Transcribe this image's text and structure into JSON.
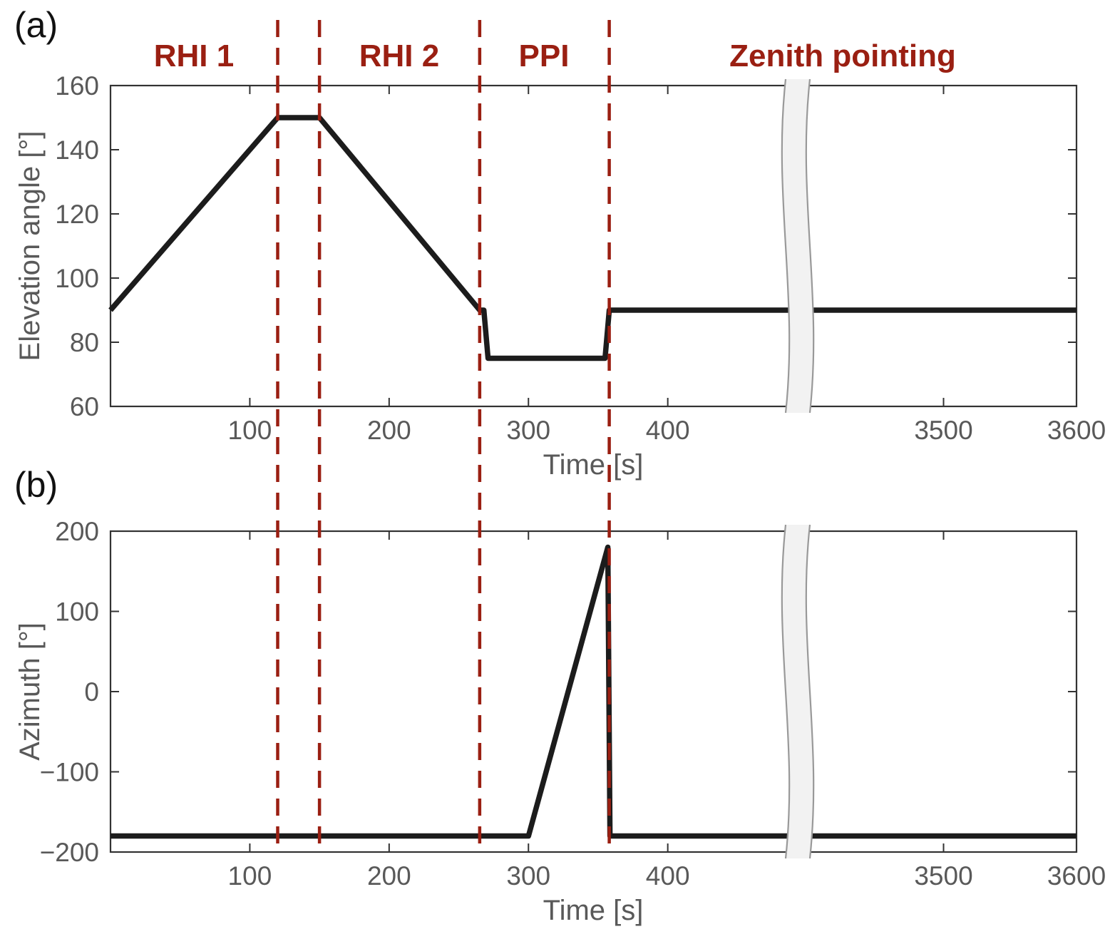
{
  "figure": {
    "background": "#ffffff",
    "panels": [
      {
        "letter": "(a)",
        "ylabel": "Elevation angle [°]",
        "xlabel": "Time [s]"
      },
      {
        "letter": "(b)",
        "ylabel": "Azimuth [°]",
        "xlabel": "Time [s]"
      }
    ],
    "phase_labels": [
      {
        "text": "RHI 1"
      },
      {
        "text": "RHI 2"
      },
      {
        "text": "PPI"
      },
      {
        "text": "Zenith pointing"
      }
    ]
  },
  "colors": {
    "dark_red": "#9a1f12",
    "line": "#1c1c1c",
    "axis": "#333333",
    "tick_text": "#595959",
    "break_fill": "#f2f2f2",
    "break_edge": "#999999"
  },
  "annotations": {
    "dashed_vlines_t": [
      120,
      150,
      265,
      358
    ]
  },
  "chart_data": [
    {
      "type": "line",
      "panel": "a",
      "title": "",
      "xlabel": "Time [s]",
      "ylabel": "Elevation angle [°]",
      "ylim": [
        60,
        160
      ],
      "yticks": [
        60,
        80,
        100,
        120,
        140,
        160
      ],
      "xticks": [
        100,
        200,
        300,
        400,
        3500,
        3600
      ],
      "axis_break": {
        "left_range": [
          0,
          480
        ],
        "right_range": [
          3400,
          3600
        ]
      },
      "grid": false,
      "legend": "none",
      "series": [
        {
          "name": "elevation-angle",
          "x": [
            0,
            120,
            150,
            265,
            268,
            271,
            355,
            358,
            3600
          ],
          "y": [
            90,
            150,
            150,
            90,
            90,
            75,
            75,
            90,
            90
          ]
        }
      ]
    },
    {
      "type": "line",
      "panel": "b",
      "title": "",
      "xlabel": "Time [s]",
      "ylabel": "Azimuth [°]",
      "ylim": [
        -200,
        200
      ],
      "yticks": [
        -200,
        -100,
        0,
        100,
        200
      ],
      "xticks": [
        100,
        200,
        300,
        400,
        3500,
        3600
      ],
      "axis_break": {
        "left_range": [
          0,
          480
        ],
        "right_range": [
          3400,
          3600
        ]
      },
      "grid": false,
      "legend": "none",
      "series": [
        {
          "name": "azimuth",
          "x": [
            0,
            300,
            357,
            358.5,
            3600
          ],
          "y": [
            -180,
            -180,
            180,
            -180,
            -180
          ]
        }
      ]
    }
  ]
}
